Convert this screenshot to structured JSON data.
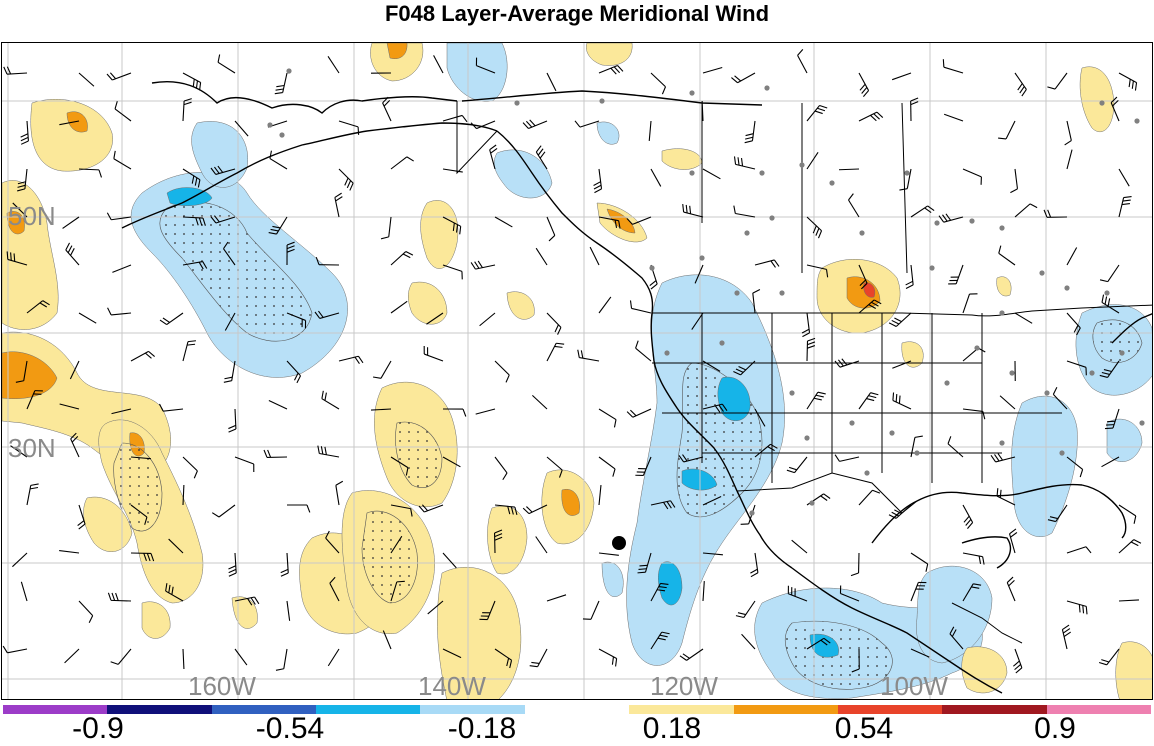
{
  "title": "F048 Layer-Average Meridional Wind",
  "map": {
    "lat_labels": [
      "50N",
      "30N"
    ],
    "lon_labels": [
      "160W",
      "140W",
      "120W",
      "100W"
    ],
    "contour_colors": {
      "neg_light": "#b8e0f7",
      "neg_mid": "#16b4e8",
      "pos_light": "#fbe89a",
      "pos_mid": "#f29a12",
      "pos_strong": "#e8432a"
    }
  },
  "colorbar": {
    "colors": [
      "#9c3cc8",
      "#10107a",
      "#3060c0",
      "#16b4e8",
      "#a8daf6",
      "#ffffff",
      "#fbe89a",
      "#f29a12",
      "#e8432a",
      "#a01820",
      "#ee80b0"
    ],
    "labels": [
      "-0.9",
      "-0.54",
      "-0.18",
      "0.18",
      "0.54",
      "0.9"
    ]
  }
}
